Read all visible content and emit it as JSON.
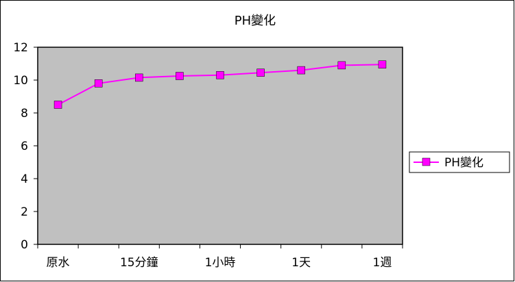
{
  "chart_data": {
    "type": "line",
    "title": "PH變化",
    "x": [
      "原水",
      "",
      "15分鐘",
      "",
      "1小時",
      "",
      "1天",
      "",
      "1週"
    ],
    "tick_labels": [
      "原水",
      "15分鐘",
      "1小時",
      "1天",
      "1週"
    ],
    "series": [
      {
        "name": "PH變化",
        "color": "#ff00ff",
        "values": [
          8.5,
          9.8,
          10.15,
          10.25,
          10.3,
          10.45,
          10.6,
          10.9,
          10.95
        ]
      }
    ],
    "ylim": [
      0,
      12
    ],
    "yticks": [
      0,
      2,
      4,
      6,
      8,
      10,
      12
    ],
    "grid": false,
    "legend": "right",
    "plot_bg": "#c0c0c0",
    "marker": "square"
  }
}
